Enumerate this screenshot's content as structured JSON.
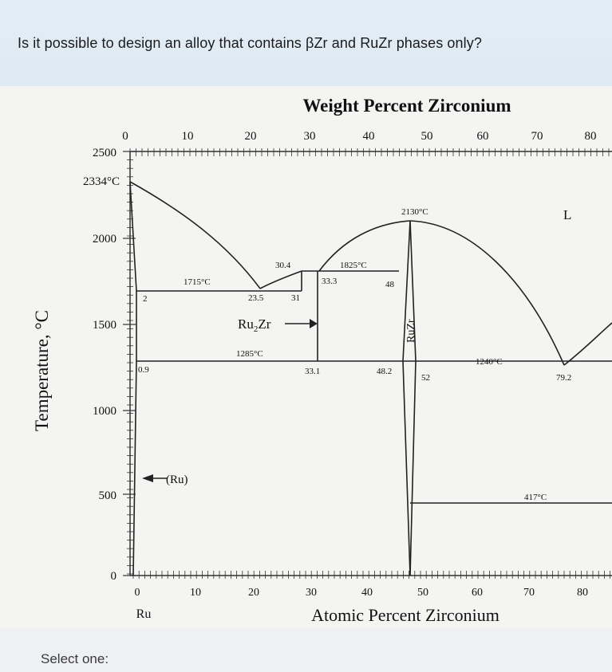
{
  "question": {
    "text": "Is it possible to design an alloy that contains βZr and RuZr phases only?"
  },
  "answer": {
    "prompt": "Select one:"
  },
  "chart_data": {
    "type": "phase-diagram",
    "title": "Weight Percent Zirconium",
    "xlabel": "Atomic Percent Zirconium",
    "ylabel": "Temperature, °C",
    "xlim": [
      0,
      80
    ],
    "ylim": [
      0,
      2500
    ],
    "y_ticks": [
      "0",
      "500",
      "1000",
      "1500",
      "2000",
      "2500"
    ],
    "y_extra_label": "2334°C",
    "x_ticks_top": [
      "0",
      "10",
      "20",
      "30",
      "40",
      "50",
      "60",
      "70",
      "80"
    ],
    "x_ticks_bottom": [
      "0",
      "10",
      "20",
      "30",
      "40",
      "50",
      "60",
      "70",
      "80"
    ],
    "x_bottom_element": "Ru",
    "phase_labels": [
      "L",
      "(Ru)",
      "Ru2Zr",
      "RuZr"
    ],
    "annotations": [
      "2130°C",
      "1825°C",
      "1715°C",
      "1285°C",
      "1240°C",
      "417°C",
      "30.4",
      "33.3",
      "48",
      "2",
      "23.5",
      "31",
      "0.9",
      "33.1",
      "48.2",
      "52",
      "79.2"
    ],
    "invariants": [
      {
        "temperature": 1715,
        "compositions": [
          2,
          23.5,
          31
        ]
      },
      {
        "temperature": 1825,
        "compositions": [
          30.4,
          33.3,
          48
        ]
      },
      {
        "temperature": 1285,
        "compositions": [
          0.9,
          33.1,
          48.2
        ]
      },
      {
        "temperature": 1240,
        "compositions": [
          52,
          79.2
        ]
      },
      {
        "temperature": 417,
        "compositions": []
      }
    ],
    "melting_points": [
      {
        "phase": "Ru",
        "temperature": 2334
      },
      {
        "phase": "RuZr",
        "temperature": 2130
      }
    ]
  }
}
